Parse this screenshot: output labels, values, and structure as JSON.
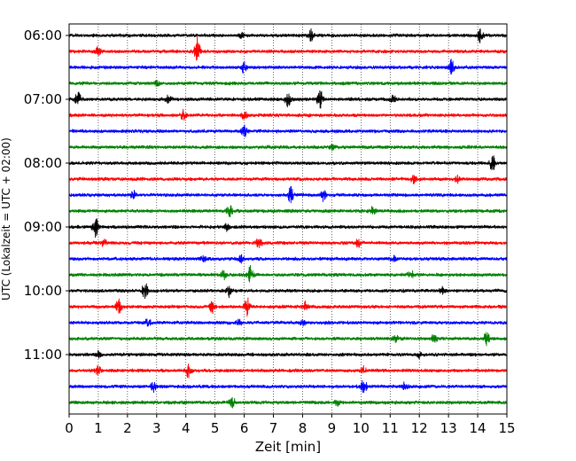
{
  "chart_data": {
    "type": "line",
    "title": "",
    "xlabel": "Zeit  [min]",
    "ylabel": "UTC (Lokalzeit = UTC + 02:00)",
    "xlim": [
      0,
      15
    ],
    "x_ticks": [
      0,
      1,
      2,
      3,
      4,
      5,
      6,
      7,
      8,
      9,
      10,
      11,
      12,
      13,
      14,
      15
    ],
    "y_tick_labels": [
      "06:00",
      "07:00",
      "08:00",
      "09:00",
      "10:00",
      "11:00"
    ],
    "y_tick_trace_index": [
      0,
      4,
      8,
      12,
      16,
      20
    ],
    "grid": "vertical dotted at each minute",
    "trace_interval_min": 15,
    "color_cycle": [
      "#000000",
      "#ff0000",
      "#0000ff",
      "#008000"
    ],
    "series": [
      {
        "start": "06:00",
        "events": [
          [
            8.3,
            1.2
          ],
          [
            14.1,
            1.3
          ],
          [
            5.9,
            0.5
          ]
        ]
      },
      {
        "start": "06:15",
        "events": [
          [
            4.4,
            2.2
          ],
          [
            1.0,
            0.6
          ]
        ]
      },
      {
        "start": "06:30",
        "events": [
          [
            6.0,
            1.0
          ],
          [
            13.1,
            1.1
          ]
        ]
      },
      {
        "start": "06:45",
        "events": [
          [
            3.0,
            0.4
          ]
        ]
      },
      {
        "start": "07:00",
        "events": [
          [
            0.3,
            1.3
          ],
          [
            3.4,
            0.7
          ],
          [
            7.5,
            1.2
          ],
          [
            8.6,
            1.5
          ],
          [
            11.1,
            0.7
          ]
        ]
      },
      {
        "start": "07:15",
        "events": [
          [
            3.9,
            0.8
          ],
          [
            6.0,
            0.7
          ]
        ]
      },
      {
        "start": "07:30",
        "events": [
          [
            6.0,
            1.0
          ]
        ]
      },
      {
        "start": "07:45",
        "events": [
          [
            9.0,
            0.4
          ]
        ]
      },
      {
        "start": "08:00",
        "events": [
          [
            14.5,
            1.6
          ]
        ]
      },
      {
        "start": "08:15",
        "events": [
          [
            11.8,
            0.6
          ],
          [
            13.3,
            0.5
          ]
        ]
      },
      {
        "start": "08:30",
        "events": [
          [
            7.6,
            1.3
          ],
          [
            8.7,
            1.0
          ],
          [
            2.2,
            0.6
          ]
        ]
      },
      {
        "start": "08:45",
        "events": [
          [
            5.5,
            1.0
          ],
          [
            10.4,
            0.6
          ]
        ]
      },
      {
        "start": "09:00",
        "events": [
          [
            0.9,
            1.5
          ],
          [
            5.4,
            0.5
          ]
        ]
      },
      {
        "start": "09:15",
        "events": [
          [
            1.2,
            0.7
          ],
          [
            6.5,
            0.9
          ],
          [
            9.9,
            0.7
          ]
        ]
      },
      {
        "start": "09:30",
        "events": [
          [
            4.6,
            0.5
          ],
          [
            5.9,
            0.6
          ],
          [
            11.1,
            0.4
          ]
        ]
      },
      {
        "start": "09:45",
        "events": [
          [
            6.2,
            1.5
          ],
          [
            5.3,
            0.7
          ],
          [
            11.7,
            0.9
          ]
        ]
      },
      {
        "start": "10:00",
        "events": [
          [
            2.6,
            1.3
          ],
          [
            5.5,
            1.0
          ],
          [
            12.8,
            0.5
          ]
        ]
      },
      {
        "start": "10:15",
        "events": [
          [
            1.7,
            1.4
          ],
          [
            4.9,
            1.0
          ],
          [
            6.1,
            1.4
          ],
          [
            8.1,
            0.7
          ]
        ]
      },
      {
        "start": "10:30",
        "events": [
          [
            2.7,
            0.6
          ],
          [
            5.8,
            0.5
          ],
          [
            8.0,
            0.5
          ]
        ]
      },
      {
        "start": "10:45",
        "events": [
          [
            11.2,
            0.5
          ],
          [
            12.5,
            0.7
          ],
          [
            14.3,
            1.1
          ]
        ]
      },
      {
        "start": "11:00",
        "events": [
          [
            1.0,
            0.5
          ],
          [
            12.0,
            0.4
          ]
        ]
      },
      {
        "start": "11:15",
        "events": [
          [
            1.0,
            0.8
          ],
          [
            4.1,
            1.1
          ],
          [
            10.1,
            0.9
          ]
        ]
      },
      {
        "start": "11:30",
        "events": [
          [
            2.9,
            0.7
          ],
          [
            10.1,
            1.2
          ],
          [
            11.5,
            0.6
          ]
        ]
      },
      {
        "start": "11:45",
        "events": [
          [
            5.6,
            0.9
          ],
          [
            9.2,
            0.5
          ]
        ]
      }
    ]
  }
}
